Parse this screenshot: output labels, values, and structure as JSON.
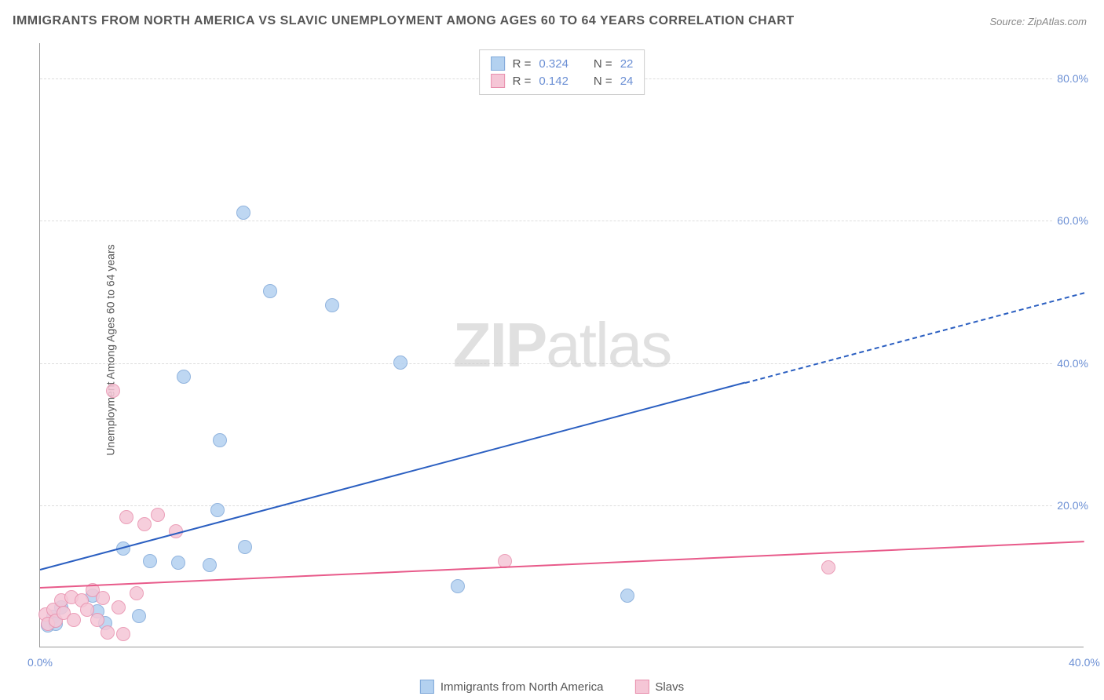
{
  "chart": {
    "type": "scatter",
    "title": "IMMIGRANTS FROM NORTH AMERICA VS SLAVIC UNEMPLOYMENT AMONG AGES 60 TO 64 YEARS CORRELATION CHART",
    "source": "Source: ZipAtlas.com",
    "y_axis_label": "Unemployment Among Ages 60 to 64 years",
    "watermark_bold": "ZIP",
    "watermark_light": "atlas",
    "background_color": "#ffffff",
    "grid_color": "#dddddd",
    "axis_color": "#999999",
    "xlim": [
      0,
      40
    ],
    "ylim": [
      0,
      85
    ],
    "x_ticks": [
      {
        "pos": 0,
        "label": "0.0%"
      },
      {
        "pos": 40,
        "label": "40.0%"
      }
    ],
    "y_ticks": [
      {
        "pos": 20,
        "label": "20.0%"
      },
      {
        "pos": 40,
        "label": "40.0%"
      },
      {
        "pos": 60,
        "label": "60.0%"
      },
      {
        "pos": 80,
        "label": "80.0%"
      }
    ],
    "series": [
      {
        "name": "Immigrants from North America",
        "color_fill": "#b3d1f0",
        "color_stroke": "#7fa8d9",
        "marker_size": 18,
        "trend_color": "#2b5fc1",
        "trend_solid_end_x": 27,
        "trend_dashed": true,
        "trend": {
          "x1": 0,
          "y1": 11,
          "x2": 40,
          "y2": 50
        },
        "stats": {
          "R_label": "R =",
          "R": "0.324",
          "N_label": "N =",
          "N": "22"
        },
        "points": [
          {
            "x": 0.3,
            "y": 3.0
          },
          {
            "x": 0.5,
            "y": 4.2
          },
          {
            "x": 0.6,
            "y": 3.2
          },
          {
            "x": 0.8,
            "y": 5.5
          },
          {
            "x": 2.0,
            "y": 7.2
          },
          {
            "x": 2.2,
            "y": 5.0
          },
          {
            "x": 2.5,
            "y": 3.3
          },
          {
            "x": 3.2,
            "y": 13.8
          },
          {
            "x": 3.8,
            "y": 4.3
          },
          {
            "x": 4.2,
            "y": 12.0
          },
          {
            "x": 5.3,
            "y": 11.8
          },
          {
            "x": 5.5,
            "y": 38.0
          },
          {
            "x": 6.5,
            "y": 11.5
          },
          {
            "x": 6.8,
            "y": 19.2
          },
          {
            "x": 6.9,
            "y": 29.0
          },
          {
            "x": 7.8,
            "y": 61.0
          },
          {
            "x": 7.85,
            "y": 14.0
          },
          {
            "x": 8.8,
            "y": 50.0
          },
          {
            "x": 11.2,
            "y": 48.0
          },
          {
            "x": 13.8,
            "y": 40.0
          },
          {
            "x": 16.0,
            "y": 8.5
          },
          {
            "x": 22.5,
            "y": 7.2
          }
        ]
      },
      {
        "name": "Slavs",
        "color_fill": "#f5c6d6",
        "color_stroke": "#e88fad",
        "marker_size": 18,
        "trend_color": "#e85a8a",
        "trend_solid_end_x": 40,
        "trend_dashed": false,
        "trend": {
          "x1": 0,
          "y1": 8.5,
          "x2": 40,
          "y2": 15
        },
        "stats": {
          "R_label": "R =",
          "R": "0.142",
          "N_label": "N =",
          "N": "24"
        },
        "points": [
          {
            "x": 0.2,
            "y": 4.5
          },
          {
            "x": 0.3,
            "y": 3.2
          },
          {
            "x": 0.5,
            "y": 5.2
          },
          {
            "x": 0.6,
            "y": 3.6
          },
          {
            "x": 0.8,
            "y": 6.5
          },
          {
            "x": 0.9,
            "y": 4.8
          },
          {
            "x": 1.2,
            "y": 7.0
          },
          {
            "x": 1.3,
            "y": 3.8
          },
          {
            "x": 1.6,
            "y": 6.5
          },
          {
            "x": 1.8,
            "y": 5.2
          },
          {
            "x": 2.0,
            "y": 8.0
          },
          {
            "x": 2.2,
            "y": 3.7
          },
          {
            "x": 2.4,
            "y": 6.8
          },
          {
            "x": 2.6,
            "y": 2.0
          },
          {
            "x": 2.8,
            "y": 36.0
          },
          {
            "x": 3.0,
            "y": 5.5
          },
          {
            "x": 3.2,
            "y": 1.8
          },
          {
            "x": 3.3,
            "y": 18.2
          },
          {
            "x": 3.7,
            "y": 7.5
          },
          {
            "x": 4.0,
            "y": 17.2
          },
          {
            "x": 4.5,
            "y": 18.5
          },
          {
            "x": 5.2,
            "y": 16.2
          },
          {
            "x": 17.8,
            "y": 12.0
          },
          {
            "x": 30.2,
            "y": 11.2
          }
        ]
      }
    ],
    "bottom_legend": [
      {
        "swatch_fill": "#b3d1f0",
        "swatch_stroke": "#7fa8d9",
        "label": "Immigrants from North America"
      },
      {
        "swatch_fill": "#f5c6d6",
        "swatch_stroke": "#e88fad",
        "label": "Slavs"
      }
    ]
  }
}
